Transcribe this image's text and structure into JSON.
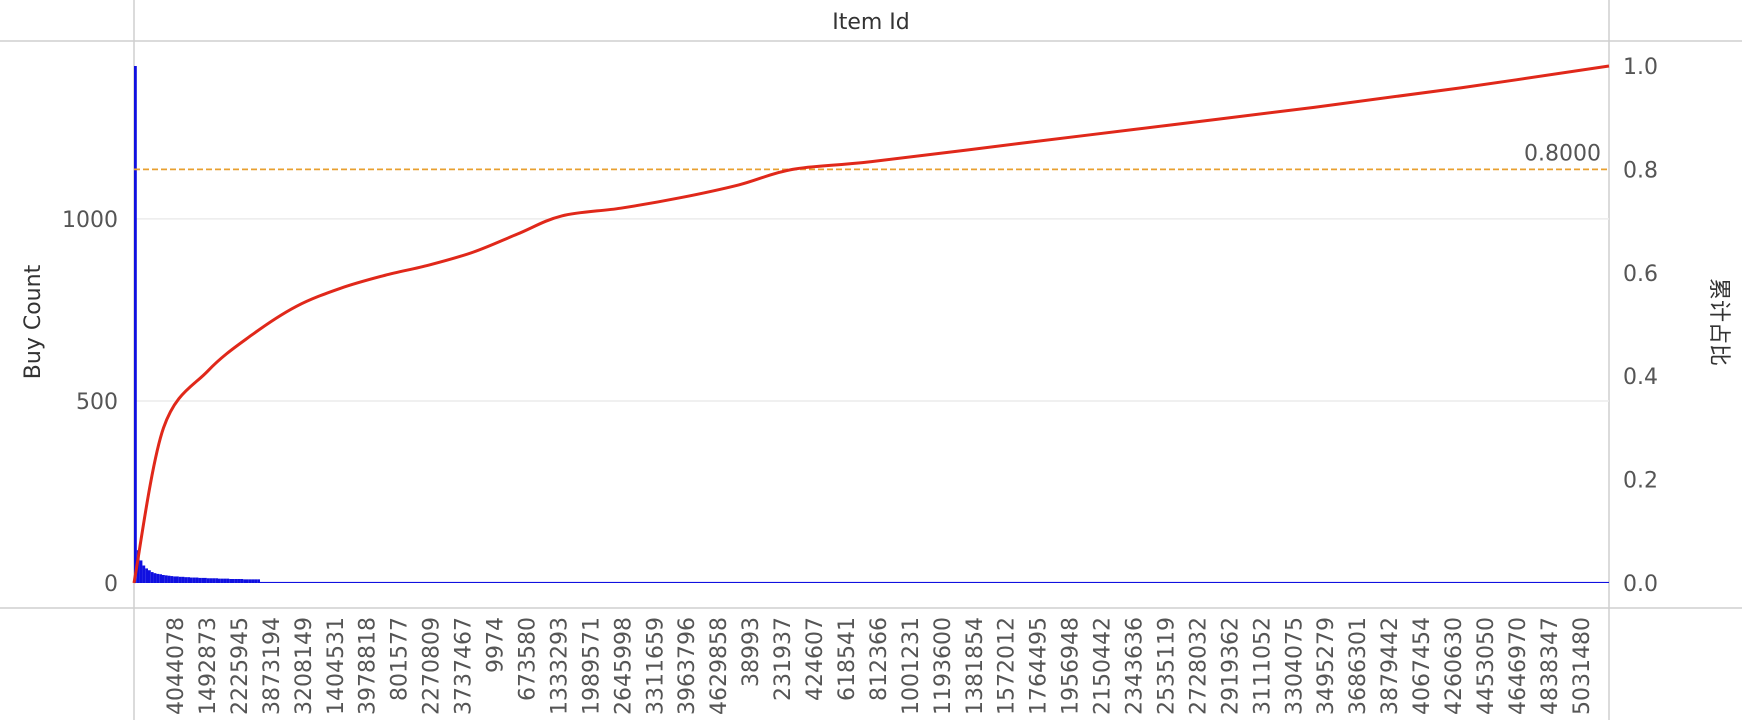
{
  "chart_data": {
    "type": "pareto",
    "column_header": "Item Id",
    "ylabel_left": "Buy Count",
    "ylabel_right": "累计占比",
    "ylim_left": [
      0,
      1420
    ],
    "yticks_left": [
      0,
      500,
      1000
    ],
    "ylim_right": [
      0,
      1.0
    ],
    "yticks_right": [
      "0.0",
      "0.2",
      "0.4",
      "0.6",
      "0.8",
      "1.0"
    ],
    "reference_line": {
      "value": 0.8,
      "label": "0.8000"
    },
    "x_tick_labels": [
      "4044078",
      "1492873",
      "2225945",
      "3873194",
      "3208149",
      "1404531",
      "3978818",
      "801577",
      "2270809",
      "3737467",
      "9974",
      "673580",
      "1333293",
      "1989571",
      "2645998",
      "3311659",
      "3963796",
      "4629858",
      "38993",
      "231937",
      "424607",
      "618541",
      "812366",
      "1001231",
      "1193600",
      "1381854",
      "1572012",
      "1764495",
      "1956948",
      "2150442",
      "2343636",
      "2535119",
      "2728032",
      "2919362",
      "3111052",
      "3304075",
      "3495279",
      "3686301",
      "3879442",
      "4067454",
      "4260630",
      "4453050",
      "4646970",
      "4838347",
      "5031480"
    ],
    "bars": {
      "color": "#1010e0",
      "values": [
        1420,
        90,
        62,
        48,
        40,
        35,
        30,
        27,
        25,
        24,
        22,
        21,
        20,
        19,
        18,
        18,
        17,
        17,
        16,
        16,
        15,
        15,
        15,
        14,
        14,
        14,
        13,
        13,
        13,
        13,
        12,
        12,
        12,
        12,
        11,
        11,
        11,
        11,
        11,
        10,
        10,
        10,
        10,
        10,
        10
      ],
      "tail_value": 3
    },
    "cumulative_line": {
      "color": "#e0281a",
      "points": [
        [
          0,
          0.0
        ],
        [
          0.02,
          0.3
        ],
        [
          0.05,
          0.41
        ],
        [
          0.08,
          0.48
        ],
        [
          0.11,
          0.535
        ],
        [
          0.14,
          0.57
        ],
        [
          0.17,
          0.595
        ],
        [
          0.2,
          0.615
        ],
        [
          0.23,
          0.64
        ],
        [
          0.26,
          0.675
        ],
        [
          0.29,
          0.71
        ],
        [
          0.33,
          0.725
        ],
        [
          0.37,
          0.745
        ],
        [
          0.41,
          0.77
        ],
        [
          0.4465,
          0.8
        ],
        [
          0.5,
          0.815
        ],
        [
          0.6,
          0.85
        ],
        [
          0.7,
          0.885
        ],
        [
          0.8,
          0.92
        ],
        [
          0.9,
          0.958
        ],
        [
          1.0,
          1.0
        ]
      ]
    }
  }
}
